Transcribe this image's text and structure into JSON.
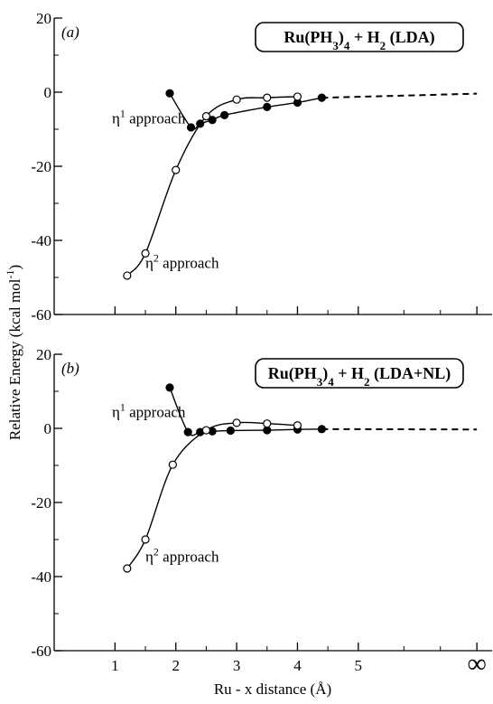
{
  "chart_data": [
    {
      "type": "line",
      "panel_label": "(a)",
      "title_html": [
        "Ru(PH",
        "3",
        ")",
        "4",
        " + H",
        "2",
        " (LDA)"
      ],
      "ylim": [
        -60,
        20
      ],
      "yticks": [
        20,
        0,
        -20,
        -40,
        -60
      ],
      "x_range": [
        0,
        7.2
      ],
      "infinity_x": 6.95,
      "series": [
        {
          "marker": "filled",
          "x": [
            1.9,
            2.25,
            2.4,
            2.6,
            2.8,
            3.5,
            4.0,
            4.4
          ],
          "y": [
            -0.3,
            -9.5,
            -8.5,
            -7.5,
            -6.2,
            -4.0,
            -2.8,
            -1.5
          ]
        },
        {
          "marker": "open",
          "x": [
            1.2,
            1.5,
            2.0,
            2.5,
            3.0,
            3.5,
            4.0
          ],
          "y": [
            -49.5,
            -43.5,
            -21.0,
            -6.5,
            -2.0,
            -1.5,
            -1.2
          ]
        }
      ],
      "dashed_to_infinity": {
        "x": [
          4.4,
          6.95
        ],
        "y": [
          -1.5,
          -0.4
        ]
      },
      "annotations": [
        {
          "text": "η",
          "sup": "1",
          "rest": " approach",
          "x": 0.95,
          "y": -7.0
        },
        {
          "text": "η",
          "sup": "2",
          "rest": " approach",
          "x": 1.5,
          "y": -46.0
        }
      ]
    },
    {
      "type": "line",
      "panel_label": "(b)",
      "title_html": [
        "Ru(PH",
        "3",
        ")",
        "4",
        " + H",
        "2",
        " (LDA+NL)"
      ],
      "ylim": [
        -60,
        20
      ],
      "yticks": [
        20,
        0,
        -20,
        -40,
        -60
      ],
      "x_range": [
        0,
        7.2
      ],
      "infinity_x": 6.95,
      "series": [
        {
          "marker": "filled",
          "x": [
            1.9,
            2.2,
            2.4,
            2.6,
            2.9,
            3.5,
            4.0,
            4.4
          ],
          "y": [
            11.0,
            -1.0,
            -1.0,
            -0.8,
            -0.6,
            -0.5,
            -0.3,
            -0.2
          ]
        },
        {
          "marker": "open",
          "x": [
            1.2,
            1.5,
            1.95,
            2.5,
            3.0,
            3.5,
            4.0
          ],
          "y": [
            -37.8,
            -30.0,
            -9.8,
            -0.5,
            1.5,
            1.3,
            0.8
          ]
        }
      ],
      "dashed_to_infinity": {
        "x": [
          4.4,
          6.95
        ],
        "y": [
          -0.2,
          -0.3
        ]
      },
      "annotations": [
        {
          "text": "η",
          "sup": "1",
          "rest": " approach",
          "x": 0.95,
          "y": 4.5
        },
        {
          "text": "η",
          "sup": "2",
          "rest": " approach",
          "x": 1.5,
          "y": -34.5
        }
      ]
    }
  ],
  "shared": {
    "xticks": [
      1,
      2,
      3,
      4,
      5
    ],
    "xtick_labels": [
      "1",
      "2",
      "3",
      "4",
      "5"
    ],
    "infinity_label": "∞",
    "xlabel": "Ru - x distance (Å)",
    "ylabel": "Relative Energy (kcal mol",
    "ylabel_sup": "-1",
    "ylabel_close": ")"
  }
}
